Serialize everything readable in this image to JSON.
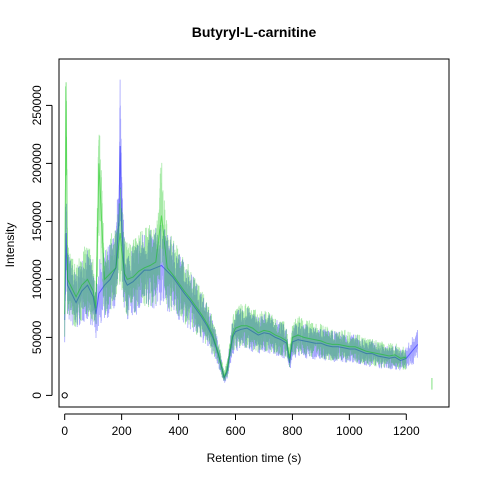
{
  "chart_data": {
    "type": "line",
    "title": "Butyryl-L-carnitine",
    "xlabel": "Retention time (s)",
    "ylabel": "Intensity",
    "xlim": [
      -20,
      1350
    ],
    "ylim": [
      -10000,
      290000
    ],
    "x_ticks": [
      0,
      200,
      400,
      600,
      800,
      1000,
      1200
    ],
    "y_ticks": [
      0,
      50000,
      100000,
      150000,
      200000,
      250000
    ],
    "legend": "none",
    "grid": false,
    "series": [
      {
        "color": "#0000ff",
        "opacity": 0.35,
        "x": [
          0,
          5,
          10,
          20,
          40,
          60,
          80,
          100,
          110,
          120,
          140,
          160,
          180,
          190,
          195,
          200,
          205,
          210,
          220,
          240,
          260,
          280,
          300,
          320,
          340,
          360,
          380,
          400,
          420,
          440,
          460,
          480,
          500,
          520,
          540,
          550,
          560,
          570,
          580,
          590,
          600,
          620,
          640,
          660,
          680,
          700,
          720,
          740,
          760,
          780,
          790,
          800,
          820,
          840,
          860,
          880,
          900,
          920,
          940,
          960,
          980,
          1000,
          1020,
          1040,
          1060,
          1080,
          1100,
          1120,
          1140,
          1160,
          1180,
          1200,
          1220,
          1240
        ],
        "y": [
          65000,
          140000,
          95000,
          90000,
          80000,
          90000,
          95000,
          85000,
          70000,
          88000,
          95000,
          100000,
          110000,
          150000,
          215000,
          150000,
          125000,
          100000,
          95000,
          98000,
          103000,
          108000,
          108000,
          110000,
          112000,
          107000,
          102000,
          95000,
          88000,
          82000,
          75000,
          68000,
          60000,
          50000,
          35000,
          25000,
          15000,
          20000,
          35000,
          50000,
          55000,
          57000,
          58000,
          55000,
          52000,
          54000,
          53000,
          50000,
          48000,
          45000,
          28000,
          46000,
          48000,
          47000,
          46000,
          45000,
          45000,
          43000,
          42000,
          42000,
          41000,
          40000,
          40000,
          38000,
          36000,
          36000,
          34000,
          33000,
          32000,
          33000,
          30000,
          32000,
          38000,
          44000
        ]
      },
      {
        "color": "#00c400",
        "opacity": 0.35,
        "x": [
          0,
          5,
          10,
          20,
          40,
          60,
          80,
          100,
          110,
          120,
          140,
          160,
          180,
          190,
          195,
          200,
          205,
          210,
          220,
          240,
          260,
          280,
          300,
          320,
          340,
          360,
          380,
          400,
          420,
          440,
          460,
          480,
          500,
          520,
          540,
          550,
          560,
          570,
          580,
          590,
          600,
          620,
          640,
          660,
          680,
          700,
          720,
          740,
          760,
          780,
          790,
          800,
          820,
          840,
          860,
          880,
          900,
          920,
          940,
          960,
          980,
          1000,
          1020,
          1040,
          1060,
          1080,
          1100,
          1120,
          1140,
          1160,
          1180,
          1200,
          1220,
          1240,
          1290
        ],
        "y": [
          70000,
          270000,
          100000,
          95000,
          85000,
          95000,
          100000,
          90000,
          75000,
          200000,
          100000,
          105000,
          110000,
          130000,
          140000,
          125000,
          115000,
          105000,
          100000,
          102000,
          107000,
          110000,
          112000,
          115000,
          155000,
          110000,
          104000,
          97000,
          90000,
          84000,
          77000,
          70000,
          62000,
          52000,
          36000,
          26000,
          16000,
          22000,
          38000,
          52000,
          58000,
          60000,
          60000,
          58000,
          54000,
          56000,
          55000,
          52000,
          50000,
          47000,
          32000,
          50000,
          52000,
          50000,
          49000,
          48000,
          47000,
          45000,
          44000,
          44000,
          43000,
          42000,
          42000,
          40000,
          38000,
          37000,
          36000,
          35000,
          34000,
          35000,
          32000,
          33000,
          null,
          null,
          10000
        ]
      }
    ],
    "extra_points": [
      {
        "x": 0,
        "y": 0,
        "shape": "open-circle"
      }
    ]
  }
}
